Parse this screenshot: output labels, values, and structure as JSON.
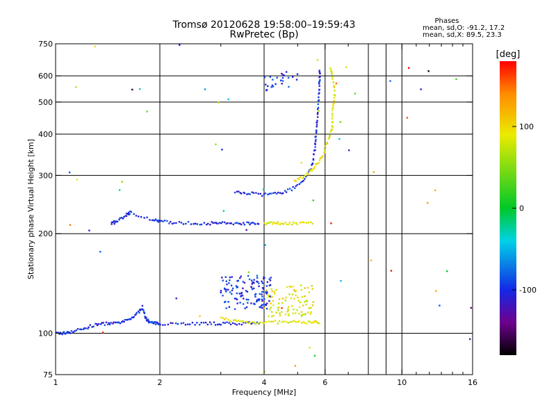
{
  "chart_data": {
    "type": "scatter",
    "title": "Tromsø 20120628 19:58:00–19:59:43",
    "subtitle": "RwPretec (Bp)",
    "xlabel": "Frequency [MHz]",
    "ylabel": "Stationary phase Virtual Height [km]",
    "x_scale": "log",
    "y_scale": "log",
    "xlim": [
      1,
      16
    ],
    "ylim": [
      75,
      750
    ],
    "x_ticks": [
      1,
      2,
      4,
      6,
      10,
      16
    ],
    "x_ticks_labels": [
      "1",
      "2",
      "4",
      "6",
      "10",
      "16"
    ],
    "x_grid": [
      2,
      4,
      6,
      8,
      9,
      10
    ],
    "x_minor_ticks": [
      3,
      5,
      7,
      8,
      9,
      11,
      12,
      13,
      14,
      15
    ],
    "y_ticks": [
      75,
      100,
      200,
      300,
      400,
      500,
      600,
      750
    ],
    "y_ticks_labels": [
      "75",
      "100",
      "200",
      "300",
      "400",
      "500",
      "600",
      "750"
    ],
    "y_grid": [
      100,
      200,
      300,
      400,
      500,
      600
    ],
    "grid": true,
    "phase_info": {
      "title": "Phases",
      "line1": "mean, sd,O: -91.2, 17.2",
      "line2": "mean, sd,X:  89.5, 23.3"
    },
    "colorbar": {
      "label": "[deg]",
      "range": [
        -180,
        180
      ],
      "ticks": [
        -100,
        0,
        100
      ],
      "ticks_labels": [
        "-100",
        "0",
        "100"
      ]
    },
    "traces": [
      {
        "name": "o-trace-E",
        "color_phase": -100,
        "points": [
          [
            1.0,
            100
          ],
          [
            1.05,
            100
          ],
          [
            1.1,
            101
          ],
          [
            1.2,
            103
          ],
          [
            1.3,
            106
          ],
          [
            1.4,
            107
          ],
          [
            1.5,
            107
          ],
          [
            1.6,
            109
          ],
          [
            1.7,
            113
          ],
          [
            1.78,
            120
          ],
          [
            1.82,
            112
          ],
          [
            1.86,
            108
          ],
          [
            1.95,
            107
          ],
          [
            2.0,
            107
          ],
          [
            2.3,
            107
          ],
          [
            2.6,
            107
          ],
          [
            2.9,
            107
          ],
          [
            3.2,
            107
          ],
          [
            3.6,
            107
          ],
          [
            3.9,
            107
          ]
        ]
      },
      {
        "name": "x-trace-E",
        "color_phase": 90,
        "points": [
          [
            3.0,
            111
          ],
          [
            3.3,
            109
          ],
          [
            3.6,
            108
          ],
          [
            4.0,
            108
          ],
          [
            4.5,
            108
          ],
          [
            5.0,
            108
          ],
          [
            5.5,
            108
          ],
          [
            5.8,
            108
          ]
        ]
      },
      {
        "name": "o-trace-F1",
        "color_phase": -100,
        "points": [
          [
            1.45,
            215
          ],
          [
            1.5,
            217
          ],
          [
            1.6,
            228
          ],
          [
            1.65,
            232
          ],
          [
            1.9,
            220
          ],
          [
            2.0,
            218
          ],
          [
            2.2,
            216
          ],
          [
            2.5,
            215
          ],
          [
            2.8,
            215
          ],
          [
            3.0,
            215
          ],
          [
            3.3,
            215
          ],
          [
            3.6,
            215
          ],
          [
            3.9,
            216
          ]
        ]
      },
      {
        "name": "x-trace-F1",
        "color_phase": 90,
        "points": [
          [
            4.0,
            215
          ],
          [
            4.3,
            215
          ],
          [
            4.6,
            215
          ],
          [
            5.0,
            215
          ],
          [
            5.6,
            216
          ]
        ]
      },
      {
        "name": "o-trace-F2",
        "color_phase": -100,
        "points": [
          [
            3.3,
            267
          ],
          [
            3.6,
            265
          ],
          [
            4.0,
            262
          ],
          [
            4.4,
            265
          ],
          [
            4.8,
            272
          ],
          [
            5.2,
            290
          ],
          [
            5.5,
            320
          ],
          [
            5.6,
            360
          ],
          [
            5.65,
            400
          ],
          [
            5.7,
            450
          ],
          [
            5.75,
            520
          ],
          [
            5.78,
            580
          ],
          [
            5.8,
            630
          ]
        ]
      },
      {
        "name": "x-trace-F2",
        "color_phase": 90,
        "points": [
          [
            4.9,
            290
          ],
          [
            5.3,
            300
          ],
          [
            5.6,
            320
          ],
          [
            5.9,
            340
          ],
          [
            6.1,
            380
          ],
          [
            6.3,
            420
          ],
          [
            6.3,
            470
          ],
          [
            6.4,
            520
          ],
          [
            6.3,
            600
          ],
          [
            6.2,
            640
          ]
        ]
      }
    ],
    "clusters": [
      {
        "name": "o-cluster-Es",
        "color_phase": -100,
        "x": [
          3.0,
          4.2
        ],
        "y": [
          118,
          150
        ],
        "count": 130
      },
      {
        "name": "x-cluster-Es",
        "color_phase": 90,
        "x": [
          4.0,
          5.6
        ],
        "y": [
          112,
          140
        ],
        "count": 90
      },
      {
        "name": "o-cluster-F2-upper",
        "color_phase": -100,
        "x": [
          4.0,
          5.0
        ],
        "y": [
          540,
          640
        ],
        "count": 25
      }
    ]
  }
}
